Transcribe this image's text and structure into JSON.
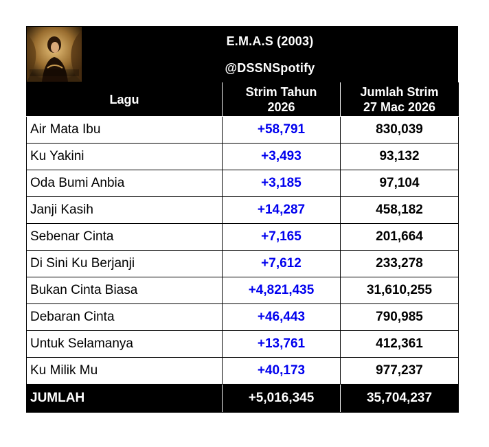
{
  "header": {
    "title": "E.M.A.S (2003)",
    "subtitle": "@DSSNSpotify"
  },
  "columns": {
    "song": "Lagu",
    "yearly": "Strim Tahun 2026",
    "total": "Jumlah Strim 27 Mac 2026"
  },
  "rows": [
    {
      "song": "Air Mata Ibu",
      "yearly": "+58,791",
      "total": "830,039"
    },
    {
      "song": "Ku Yakini",
      "yearly": "+3,493",
      "total": "93,132"
    },
    {
      "song": "Oda Bumi Anbia",
      "yearly": "+3,185",
      "total": "97,104"
    },
    {
      "song": "Janji Kasih",
      "yearly": "+14,287",
      "total": "458,182"
    },
    {
      "song": "Sebenar Cinta",
      "yearly": "+7,165",
      "total": "201,664"
    },
    {
      "song": "Di Sini Ku Berjanji",
      "yearly": "+7,612",
      "total": "233,278"
    },
    {
      "song": "Bukan Cinta Biasa",
      "yearly": "+4,821,435",
      "total": "31,610,255"
    },
    {
      "song": "Debaran Cinta",
      "yearly": "+46,443",
      "total": "790,985"
    },
    {
      "song": "Untuk Selamanya",
      "yearly": "+13,761",
      "total": "412,361"
    },
    {
      "song": "Ku Milik Mu",
      "yearly": "+40,173",
      "total": "977,237"
    }
  ],
  "summary": {
    "label": "JUMLAH",
    "yearly": "+5,016,345",
    "total": "35,704,237"
  },
  "colors": {
    "header_bg": "#000000",
    "stream_text": "#0000ee"
  }
}
